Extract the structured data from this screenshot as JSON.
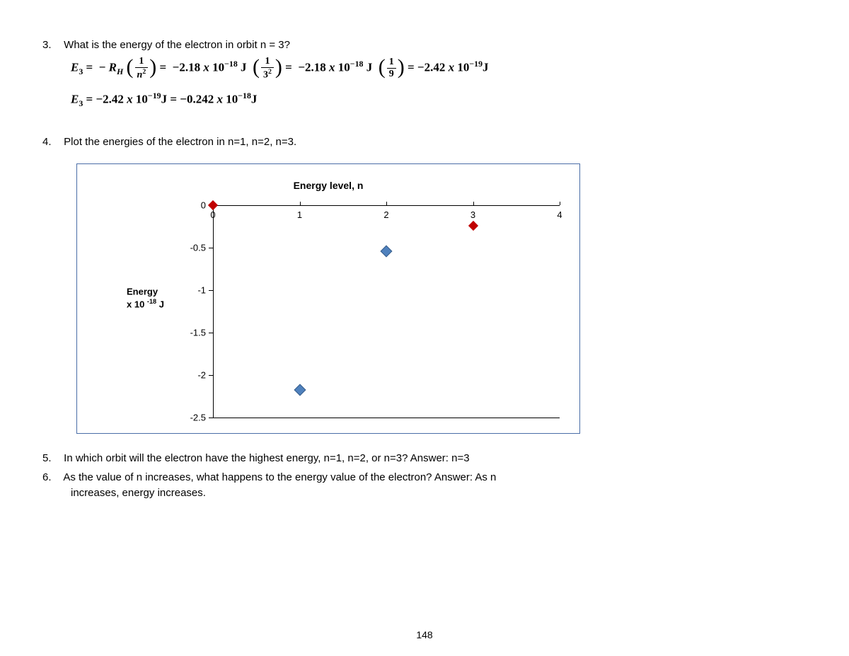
{
  "q3": {
    "number": "3.",
    "text": "What is the energy of the electron in orbit n = 3?",
    "eq1_html": "<span class='it'>E</span><sub>3</sub> = &nbsp;&minus; <span class='it'>R</span><sub><span class='it'>H</span></sub>&nbsp;<span class='paren'>(</span><span class='frac'><span class='top'>1</span><span class='bot'><span class='it'>n</span><sup>2</sup></span></span><span class='paren'>)</span> = &nbsp;&minus;2.18 <span class='it'>x</span> 10<sup>&minus;18</sup> J &nbsp;<span class='paren'>(</span><span class='frac'><span class='top'>1</span><span class='bot'>3<sup>2</sup></span></span><span class='paren'>)</span> = &nbsp;&minus;2.18 <span class='it'>x</span> 10<sup>&minus;18</sup> J &nbsp;<span class='paren'>(</span><span class='frac'><span class='top'>1</span><span class='bot'>9</span></span><span class='paren'>)</span> = &minus;2.42 <span class='it'>x</span> 10<sup>&minus;19</sup>J",
    "eq2_html": "<span class='it'>E</span><sub>3</sub> = &minus;2.42 <span class='it'>x</span> 10<sup>&minus;19</sup>J = &minus;0.242 <span class='it'>x</span> 10<sup>&minus;18</sup>J"
  },
  "q4": {
    "number": "4.",
    "text": "Plot the energies of the electron in n=1, n=2, n=3."
  },
  "chart": {
    "type": "scatter",
    "title": "Energy level, n",
    "ylabel_line1": "Energy",
    "ylabel_line2_html": "x 10 <sup>-18</sup> J",
    "ylim": [
      -2.5,
      0
    ],
    "ytick_step": 0.5,
    "yticks": [
      {
        "v": 0,
        "label": "0"
      },
      {
        "v": -0.5,
        "label": "-0.5"
      },
      {
        "v": -1,
        "label": "-1"
      },
      {
        "v": -1.5,
        "label": "-1.5"
      },
      {
        "v": -2,
        "label": "-2"
      },
      {
        "v": -2.5,
        "label": "-2.5"
      }
    ],
    "x_categories": [
      "0",
      "1",
      "2",
      "3",
      "4"
    ],
    "points": [
      {
        "x": 0,
        "y": 0.0,
        "color": "red"
      },
      {
        "x": 1,
        "y": -2.18,
        "color": "blue"
      },
      {
        "x": 2,
        "y": -0.545,
        "color": "blue"
      },
      {
        "x": 3,
        "y": -0.242,
        "color": "red"
      }
    ],
    "frame_color": "#4a6da7",
    "marker_colors": {
      "red": "#c00000",
      "blue": "#4f81bd"
    },
    "background_color": "#ffffff",
    "axis_color": "#000000",
    "title_fontsize": 14,
    "label_fontsize": 13
  },
  "q5": {
    "number": "5.",
    "text": "In which orbit will the electron have the highest energy, n=1, n=2, or n=3? Answer:  n=3"
  },
  "q6": {
    "number": "6.",
    "text_line1": "As the value of n increases, what happens to the energy value of the electron? Answer:  As n",
    "text_line2": "increases, energy increases."
  },
  "page_number": "148"
}
